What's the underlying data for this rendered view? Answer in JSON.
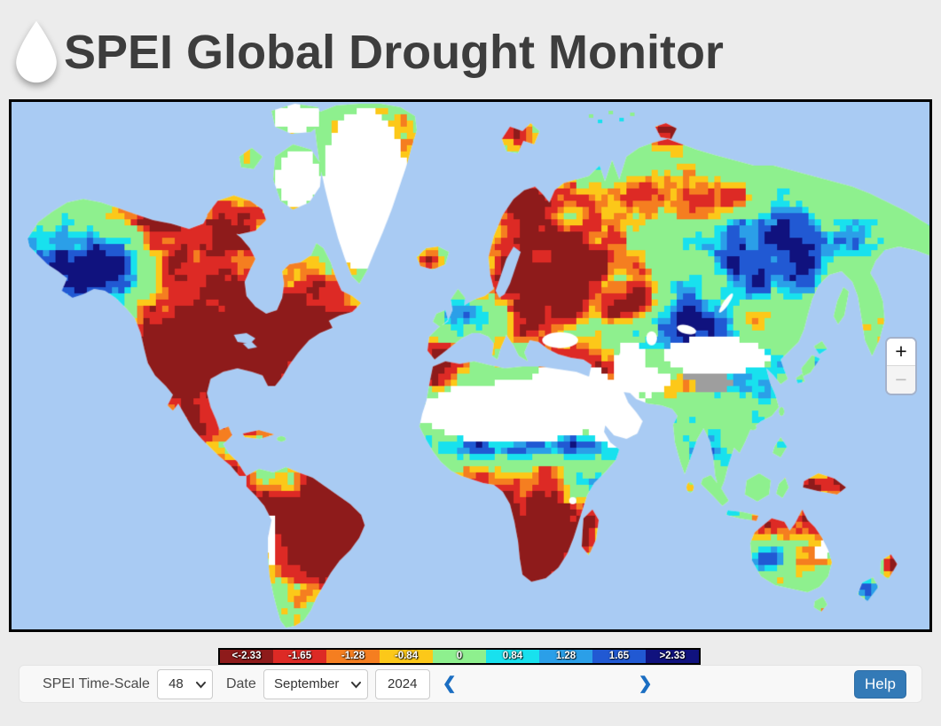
{
  "header": {
    "title": "SPEI Global Drought Monitor",
    "logo_icon": "water-drop-icon"
  },
  "map": {
    "ocean_color": "#a9cbf3",
    "no_data_color": "#ffffff",
    "masked_color": "#9e9e9e",
    "zoom_in": "+",
    "zoom_out": "−"
  },
  "legend": {
    "thresholds": [
      -2.33,
      -1.65,
      -1.28,
      -0.84,
      0.84,
      1.28,
      1.65,
      2.33
    ],
    "bins": [
      {
        "label": "<-2.33",
        "color": "#8e1b1b"
      },
      {
        "label": "-1.65",
        "color": "#dd2a25"
      },
      {
        "label": "-1.28",
        "color": "#f57e20"
      },
      {
        "label": "-0.84",
        "color": "#fcc819"
      },
      {
        "label": "0",
        "color": "#8ef08e"
      },
      {
        "label": "0.84",
        "color": "#18e1ee"
      },
      {
        "label": "1.28",
        "color": "#2b9fe8"
      },
      {
        "label": "1.65",
        "color": "#2159d3"
      },
      {
        "label": ">2.33",
        "color": "#10127e"
      }
    ]
  },
  "controls": {
    "timescale_label": "SPEI Time-Scale",
    "timescale_value": "48",
    "date_label": "Date",
    "month_value": "September",
    "year_value": "2024",
    "prev_icon": "❮",
    "next_icon": "❯",
    "help_label": "Help"
  }
}
